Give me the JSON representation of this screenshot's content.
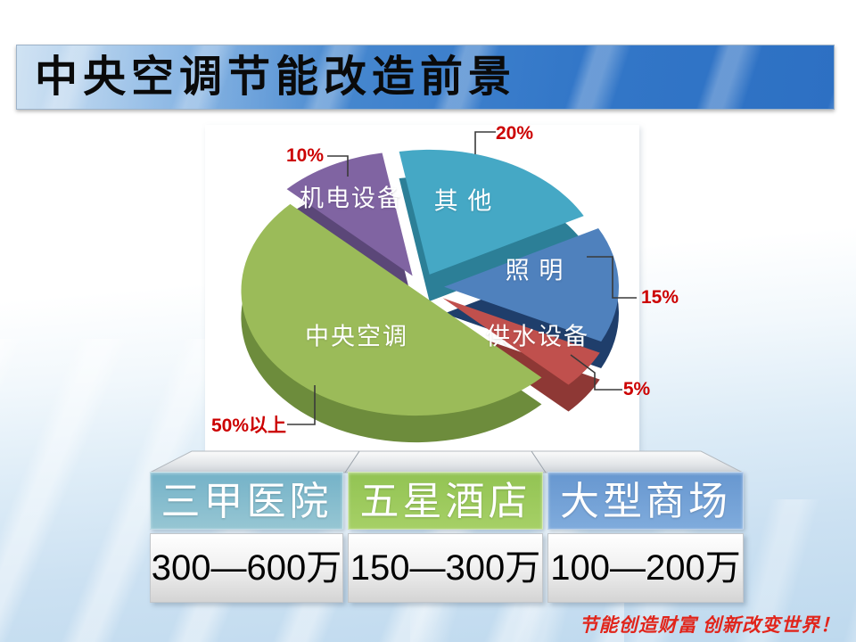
{
  "title": "中央空调节能改造前景",
  "chart_data": {
    "type": "pie",
    "title": "",
    "legend": "none",
    "slice_label_color": "#FFFFFF",
    "percent_label_color": "#CC0000",
    "slices": [
      {
        "label": "其 他",
        "value": 20,
        "percent_label": "20%",
        "color": "#45A8C5",
        "side_color": "#2C7F97"
      },
      {
        "label": "照 明",
        "value": 15,
        "percent_label": "15%",
        "color": "#4F81BD",
        "side_color": "#1F3E6B"
      },
      {
        "label": "供水设备",
        "value": 5,
        "percent_label": "5%",
        "color": "#C0504D",
        "side_color": "#8E3835"
      },
      {
        "label": "中央空调",
        "value": 50,
        "percent_label": "50%以上",
        "color": "#9BBB59",
        "side_color": "#6D8C3C"
      },
      {
        "label": "机电设备",
        "value": 10,
        "percent_label": "10%",
        "color": "#8064A2",
        "side_color": "#5B4778"
      }
    ]
  },
  "table": {
    "columns": [
      {
        "header": "三甲医院",
        "value": "300—600万",
        "header_color_top": "#74B2C8",
        "header_color_bottom": "#96C6D3"
      },
      {
        "header": "五星酒店",
        "value": "150—300万",
        "header_color_top": "#92C353",
        "header_color_bottom": "#A6D066"
      },
      {
        "header": "大型商场",
        "value": "100—200万",
        "header_color_top": "#6797D0",
        "header_color_bottom": "#7FABDC"
      }
    ]
  },
  "footer": {
    "slogan": "节能创造财富 创新改变世界！"
  }
}
